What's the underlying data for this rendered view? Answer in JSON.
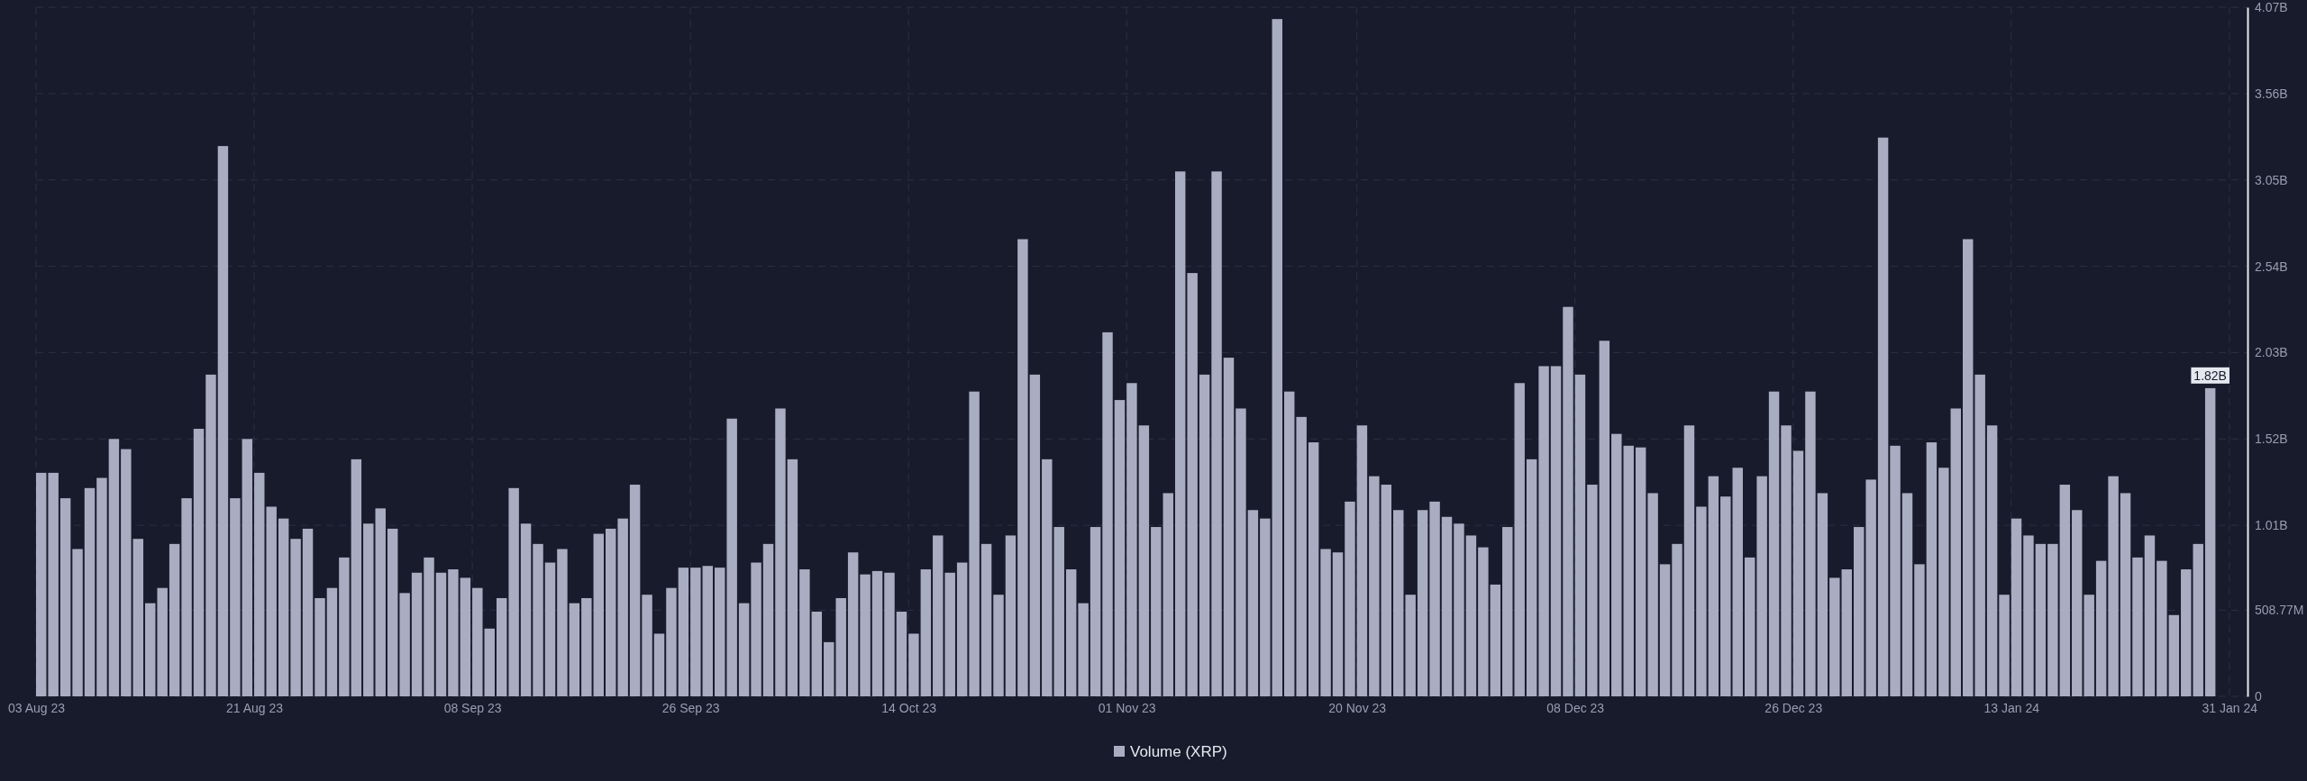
{
  "chart_data": {
    "type": "bar",
    "x": [
      "2023-08-03",
      "2023-08-04",
      "2023-08-05",
      "2023-08-06",
      "2023-08-07",
      "2023-08-08",
      "2023-08-09",
      "2023-08-10",
      "2023-08-11",
      "2023-08-12",
      "2023-08-13",
      "2023-08-14",
      "2023-08-15",
      "2023-08-16",
      "2023-08-17",
      "2023-08-18",
      "2023-08-19",
      "2023-08-20",
      "2023-08-21",
      "2023-08-22",
      "2023-08-23",
      "2023-08-24",
      "2023-08-25",
      "2023-08-26",
      "2023-08-27",
      "2023-08-28",
      "2023-08-29",
      "2023-08-30",
      "2023-08-31",
      "2023-09-01",
      "2023-09-02",
      "2023-09-03",
      "2023-09-04",
      "2023-09-05",
      "2023-09-06",
      "2023-09-07",
      "2023-09-08",
      "2023-09-09",
      "2023-09-10",
      "2023-09-11",
      "2023-09-12",
      "2023-09-13",
      "2023-09-14",
      "2023-09-15",
      "2023-09-16",
      "2023-09-17",
      "2023-09-18",
      "2023-09-19",
      "2023-09-20",
      "2023-09-21",
      "2023-09-22",
      "2023-09-23",
      "2023-09-24",
      "2023-09-25",
      "2023-09-26",
      "2023-09-27",
      "2023-09-28",
      "2023-09-29",
      "2023-09-30",
      "2023-10-01",
      "2023-10-02",
      "2023-10-03",
      "2023-10-04",
      "2023-10-05",
      "2023-10-06",
      "2023-10-07",
      "2023-10-08",
      "2023-10-09",
      "2023-10-10",
      "2023-10-11",
      "2023-10-12",
      "2023-10-13",
      "2023-10-14",
      "2023-10-15",
      "2023-10-16",
      "2023-10-17",
      "2023-10-18",
      "2023-10-19",
      "2023-10-20",
      "2023-10-21",
      "2023-10-22",
      "2023-10-23",
      "2023-10-24",
      "2023-10-25",
      "2023-10-26",
      "2023-10-27",
      "2023-10-28",
      "2023-10-29",
      "2023-10-30",
      "2023-10-31",
      "2023-11-01",
      "2023-11-02",
      "2023-11-03",
      "2023-11-04",
      "2023-11-05",
      "2023-11-06",
      "2023-11-07",
      "2023-11-08",
      "2023-11-09",
      "2023-11-10",
      "2023-11-11",
      "2023-11-12",
      "2023-11-13",
      "2023-11-14",
      "2023-11-15",
      "2023-11-16",
      "2023-11-17",
      "2023-11-18",
      "2023-11-19",
      "2023-11-20",
      "2023-11-21",
      "2023-11-22",
      "2023-11-23",
      "2023-11-24",
      "2023-11-25",
      "2023-11-26",
      "2023-11-27",
      "2023-11-28",
      "2023-11-29",
      "2023-11-30",
      "2023-12-01",
      "2023-12-02",
      "2023-12-03",
      "2023-12-04",
      "2023-12-05",
      "2023-12-06",
      "2023-12-07",
      "2023-12-08",
      "2023-12-09",
      "2023-12-10",
      "2023-12-11",
      "2023-12-12",
      "2023-12-13",
      "2023-12-14",
      "2023-12-15",
      "2023-12-16",
      "2023-12-17",
      "2023-12-18",
      "2023-12-19",
      "2023-12-20",
      "2023-12-21",
      "2023-12-22",
      "2023-12-23",
      "2023-12-24",
      "2023-12-25",
      "2023-12-26",
      "2023-12-27",
      "2023-12-28",
      "2023-12-29",
      "2023-12-30",
      "2023-12-31",
      "2024-01-01",
      "2024-01-02",
      "2024-01-03",
      "2024-01-04",
      "2024-01-05",
      "2024-01-06",
      "2024-01-07",
      "2024-01-08",
      "2024-01-09",
      "2024-01-10",
      "2024-01-11",
      "2024-01-12",
      "2024-01-13",
      "2024-01-14",
      "2024-01-15",
      "2024-01-16",
      "2024-01-17",
      "2024-01-18",
      "2024-01-19",
      "2024-01-20",
      "2024-01-21",
      "2024-01-22",
      "2024-01-23",
      "2024-01-24",
      "2024-01-25",
      "2024-01-26",
      "2024-01-27",
      "2024-01-28",
      "2024-01-29"
    ],
    "series": [
      {
        "name": "Volume (XRP)",
        "color": "#a9adc1",
        "values": [
          1320000000.0,
          1320000000.0,
          1170000000.0,
          870000000.0,
          1230000000.0,
          1290000000.0,
          1520000000.0,
          1460000000.0,
          930000000.0,
          550000000.0,
          640000000.0,
          900000000.0,
          1170000000.0,
          1580000000.0,
          1900000000.0,
          3250000000.0,
          1170000000.0,
          1520000000.0,
          1320000000.0,
          1120000000.0,
          1050000000.0,
          930000000.0,
          990000000.0,
          580000000.0,
          640000000.0,
          820000000.0,
          1400000000.0,
          1020000000.0,
          1110000000.0,
          990000000.0,
          610000000.0,
          730000000.0,
          820000000.0,
          730000000.0,
          750000000.0,
          700000000.0,
          640000000.0,
          400000000.0,
          580000000.0,
          1230000000.0,
          1020000000.0,
          900000000.0,
          790000000.0,
          870000000.0,
          550000000.0,
          580000000.0,
          960000000.0,
          990000000.0,
          1050000000.0,
          1250000000.0,
          600000000.0,
          370000000.0,
          640000000.0,
          760000000.0,
          760000000.0,
          770000000.0,
          760000000.0,
          1640000000.0,
          550000000.0,
          790000000.0,
          900000000.0,
          1700000000.0,
          1400000000.0,
          750000000.0,
          500000000.0,
          320000000.0,
          580000000.0,
          850000000.0,
          720000000.0,
          740000000.0,
          730000000.0,
          500000000.0,
          370000000.0,
          750000000.0,
          950000000.0,
          730000000.0,
          790000000.0,
          1800000000.0,
          900000000.0,
          600000000.0,
          950000000.0,
          2700000000.0,
          1900000000.0,
          1400000000.0,
          1000000000.0,
          750000000.0,
          550000000.0,
          1000000000.0,
          2150000000.0,
          1750000000.0,
          1850000000.0,
          1600000000.0,
          1000000000.0,
          1200000000.0,
          3100000000.0,
          2500000000.0,
          1900000000.0,
          3100000000.0,
          2000000000.0,
          1700000000.0,
          1100000000.0,
          1050000000.0,
          4000000000.0,
          1800000000.0,
          1650000000.0,
          1500000000.0,
          870000000.0,
          850000000.0,
          1150000000.0,
          1600000000.0,
          1300000000.0,
          1250000000.0,
          1100000000.0,
          600000000.0,
          1100000000.0,
          1150000000.0,
          1060000000.0,
          1020000000.0,
          950000000.0,
          880000000.0,
          660000000.0,
          1000000000.0,
          1850000000.0,
          1400000000.0,
          1950000000.0,
          1950000000.0,
          2300000000.0,
          1900000000.0,
          1250000000.0,
          2100000000.0,
          1550000000.0,
          1480000000.0,
          1470000000.0,
          1200000000.0,
          780000000.0,
          900000000.0,
          1600000000.0,
          1120000000.0,
          1300000000.0,
          1180000000.0,
          1350000000.0,
          820000000.0,
          1300000000.0,
          1800000000.0,
          1600000000.0,
          1450000000.0,
          1800000000.0,
          1200000000.0,
          700000000.0,
          750000000.0,
          1000000000.0,
          1280000000.0,
          3300000000.0,
          1480000000.0,
          1200000000.0,
          780000000.0,
          1500000000.0,
          1350000000.0,
          1700000000.0,
          2700000000.0,
          1900000000.0,
          1600000000.0,
          600000000.0,
          1050000000.0,
          950000000.0,
          900000000.0,
          900000000.0,
          1250000000.0,
          1100000000.0,
          600000000.0,
          800000000.0,
          1300000000.0,
          1200000000.0,
          820000000.0,
          950000000.0,
          800000000.0,
          480000000.0,
          750000000.0,
          900000000.0,
          1820000000.0
        ],
        "value_labels": [
          null,
          null,
          null,
          null,
          null,
          null,
          null,
          null,
          null,
          null,
          null,
          null,
          null,
          null,
          null,
          null,
          null,
          null,
          null,
          null,
          null,
          null,
          null,
          null,
          null,
          null,
          null,
          null,
          null,
          null,
          null,
          null,
          null,
          null,
          null,
          null,
          null,
          null,
          null,
          null,
          null,
          null,
          null,
          null,
          null,
          null,
          null,
          null,
          null,
          null,
          null,
          null,
          null,
          null,
          null,
          null,
          null,
          null,
          null,
          null,
          null,
          null,
          null,
          null,
          null,
          null,
          null,
          null,
          null,
          null,
          null,
          null,
          null,
          null,
          null,
          null,
          null,
          null,
          null,
          null,
          null,
          null,
          null,
          null,
          null,
          null,
          null,
          null,
          null,
          null,
          null,
          null,
          null,
          null,
          null,
          null,
          null,
          null,
          null,
          null,
          null,
          null,
          null,
          null,
          null,
          null,
          null,
          null,
          null,
          null,
          null,
          null,
          null,
          null,
          null,
          null,
          null,
          null,
          null,
          null,
          null,
          null,
          null,
          null,
          null,
          null,
          null,
          null,
          null,
          null,
          null,
          null,
          null,
          null,
          null,
          null,
          null,
          null,
          null,
          null,
          null,
          null,
          null,
          null,
          null,
          null,
          null,
          null,
          null,
          null,
          null,
          null,
          null,
          null,
          null,
          null,
          null,
          null,
          null,
          null,
          null,
          null,
          null,
          null,
          null,
          null,
          null,
          null,
          null,
          null,
          null,
          null,
          null,
          null,
          null,
          null,
          null,
          null,
          null,
          "1.82B"
        ]
      }
    ],
    "xlim": [
      "2023-08-03",
      "2024-02-01T12:00"
    ],
    "xticks": [
      {
        "value": "2023-08-03",
        "label": "03 Aug 23"
      },
      {
        "value": "2023-08-21",
        "label": "21 Aug 23"
      },
      {
        "value": "2023-09-08",
        "label": "08 Sep 23"
      },
      {
        "value": "2023-09-26",
        "label": "26 Sep 23"
      },
      {
        "value": "2023-10-14",
        "label": "14 Oct 23"
      },
      {
        "value": "2023-11-01",
        "label": "01 Nov 23"
      },
      {
        "value": "2023-11-20",
        "label": "20 Nov 23"
      },
      {
        "value": "2023-12-08",
        "label": "08 Dec 23"
      },
      {
        "value": "2023-12-26",
        "label": "26 Dec 23"
      },
      {
        "value": "2024-01-13",
        "label": "13 Jan 24"
      },
      {
        "value": "2024-01-31",
        "label": "31 Jan 24"
      }
    ],
    "ylim": [
      0,
      4070000000
    ],
    "yticks": [
      0,
      {
        "value": 508770000,
        "label": "508.77M"
      },
      {
        "value": 1010000000,
        "label": "1.01B"
      },
      {
        "value": 1520000000,
        "label": "1.52B"
      },
      {
        "value": 2030000000,
        "label": "2.03B"
      },
      {
        "value": 2540000000,
        "label": "2.54B"
      },
      {
        "value": 3050000000,
        "label": "3.05B"
      },
      {
        "value": 3560000000,
        "label": "3.56B"
      },
      {
        "value": 4070000000,
        "label": "4.07B"
      }
    ],
    "grid": true,
    "legend": "bottom"
  }
}
